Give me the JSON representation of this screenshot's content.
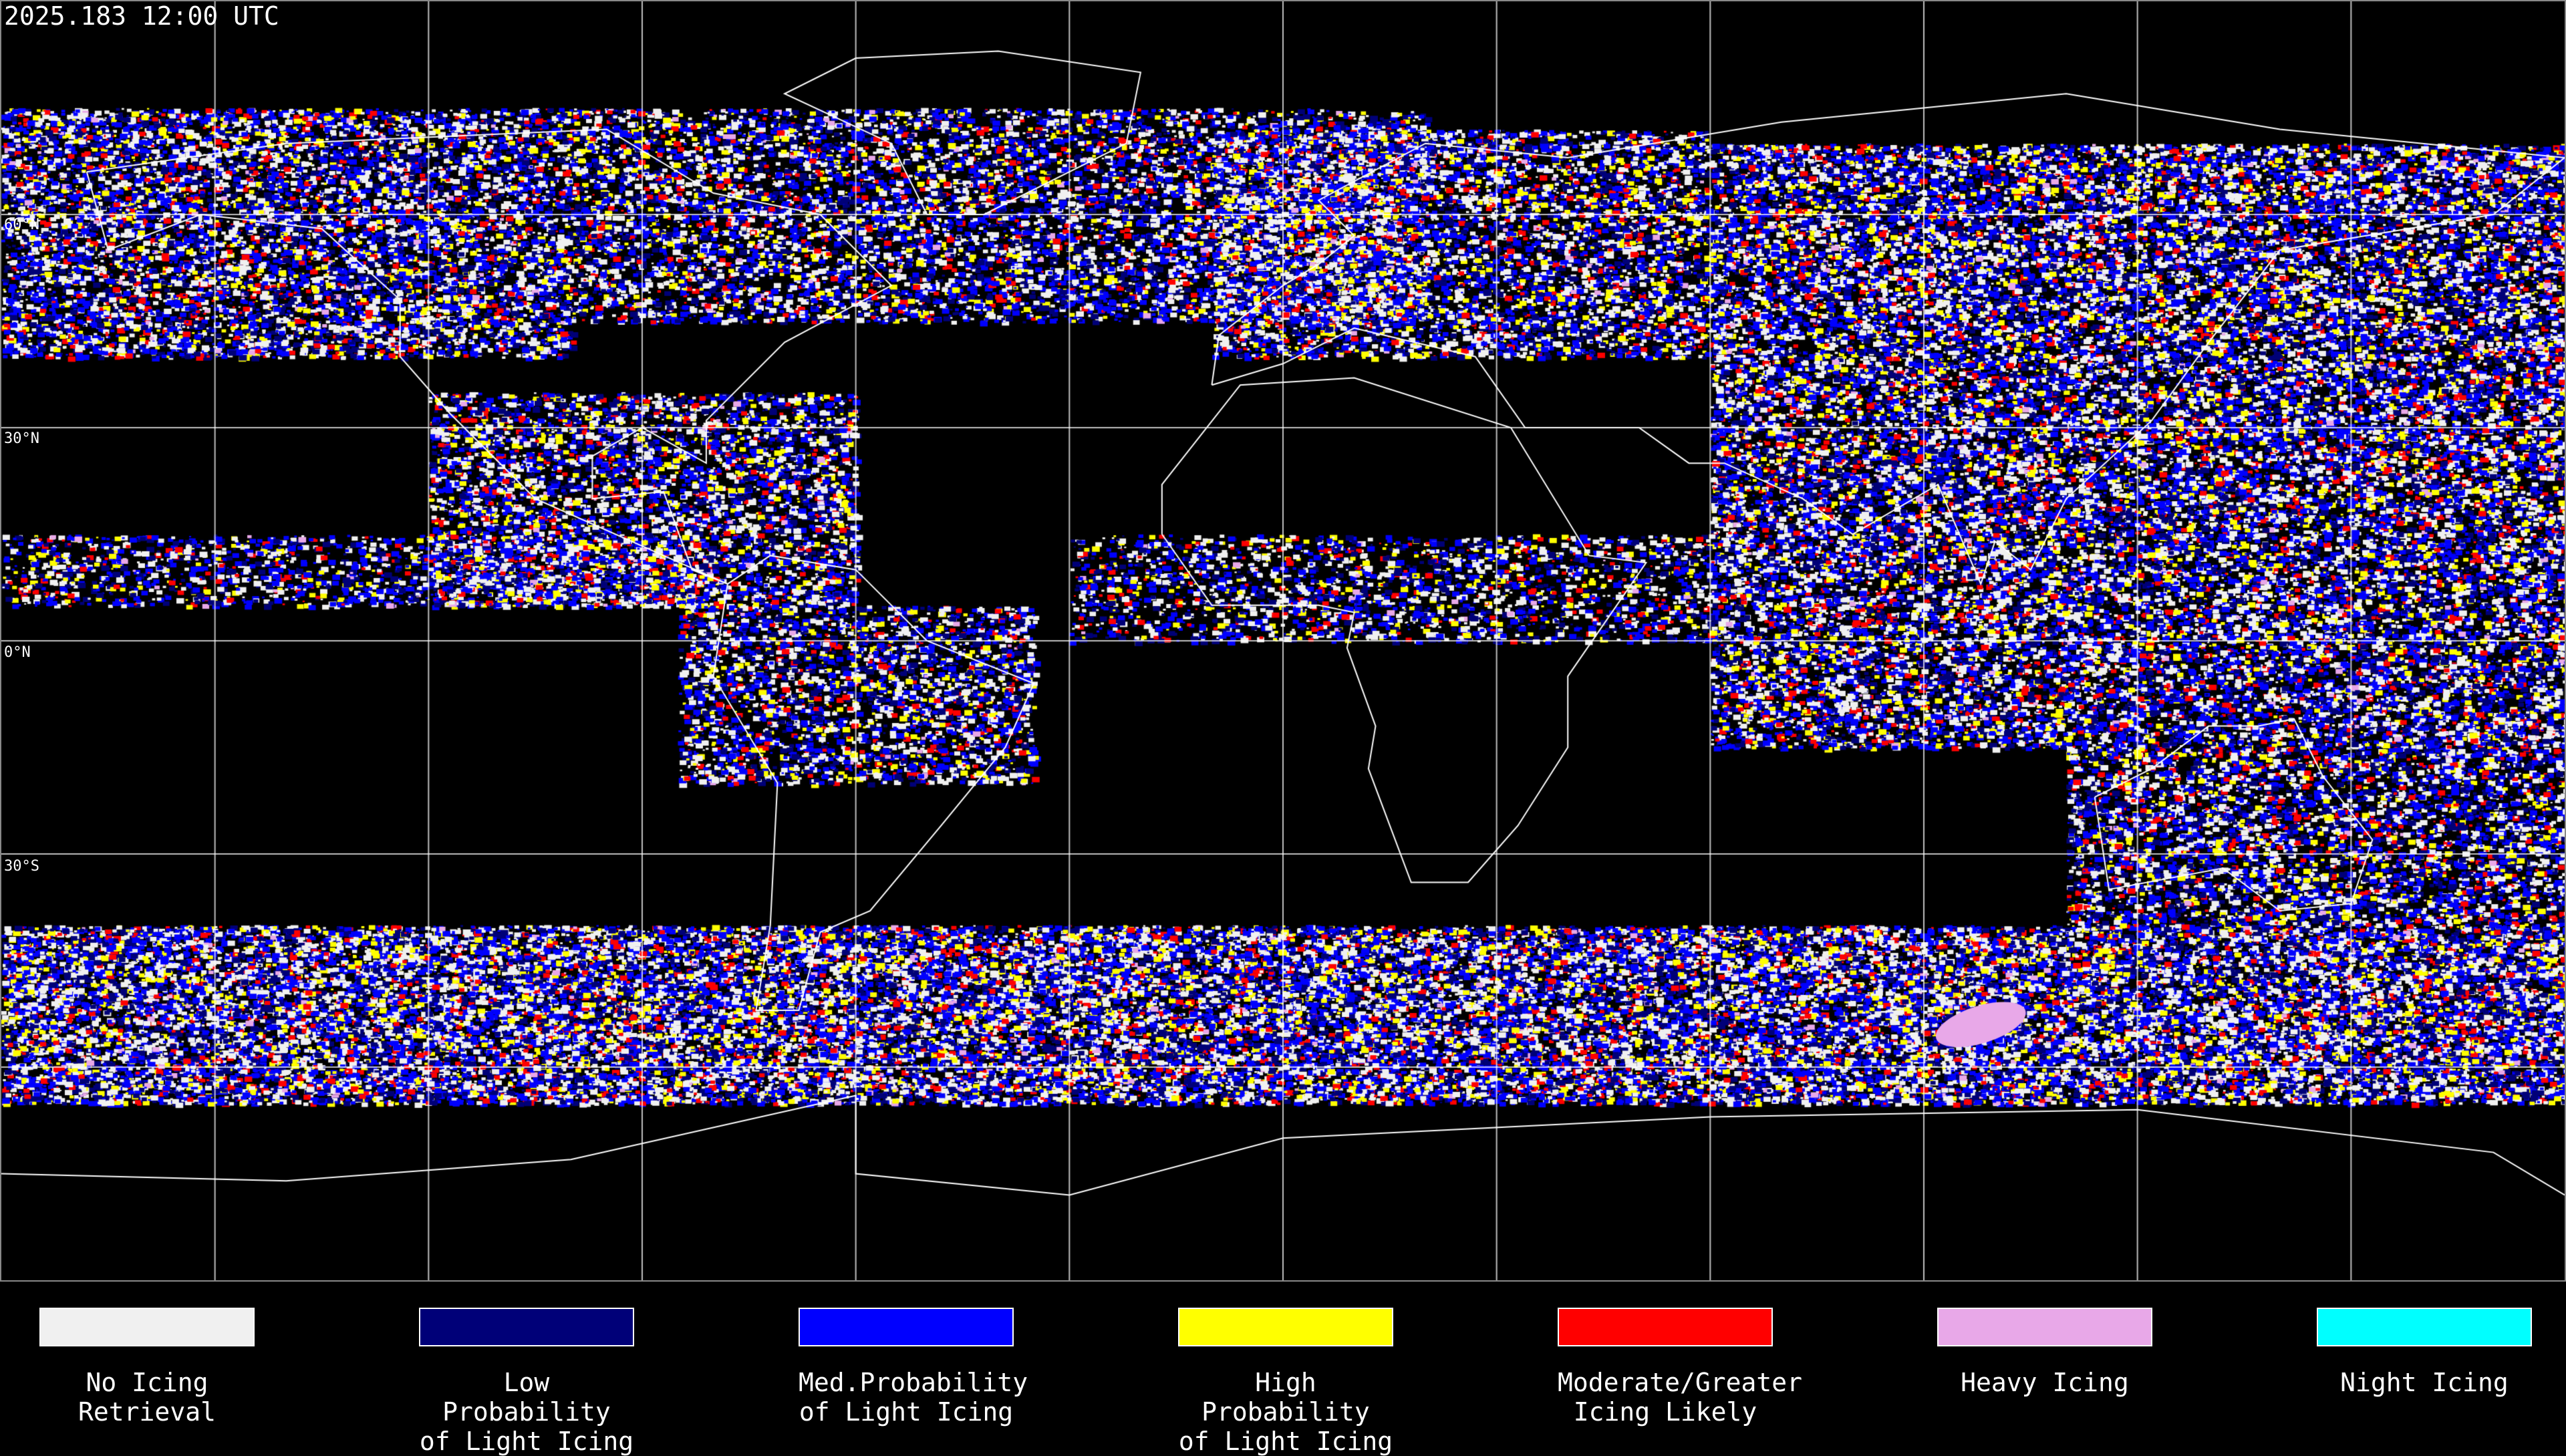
{
  "title": "2025.183 12:00 UTC",
  "lat_labels": [
    "60°N",
    "30°N",
    "0°N",
    "30°S"
  ],
  "legend": [
    {
      "label": "No Icing\nRetrieval",
      "color": "#f0f0f0"
    },
    {
      "label": "Low Probability\nof Light Icing",
      "color": "#000078"
    },
    {
      "label": "Med.Probability\nof Light Icing",
      "color": "#0000ff"
    },
    {
      "label": "High Probability\nof Light Icing",
      "color": "#ffff00"
    },
    {
      "label": "Moderate/Greater\nIcing Likely",
      "color": "#ff0000"
    },
    {
      "label": "Heavy Icing",
      "color": "#e8a8e8"
    },
    {
      "label": "Night Icing",
      "color": "#00ffff"
    }
  ],
  "map": {
    "projection": "equirectangular",
    "grid_spacing_deg": 30,
    "grid_color": "#ffffff",
    "coastline_color": "#ffffff",
    "background": "#000000"
  }
}
